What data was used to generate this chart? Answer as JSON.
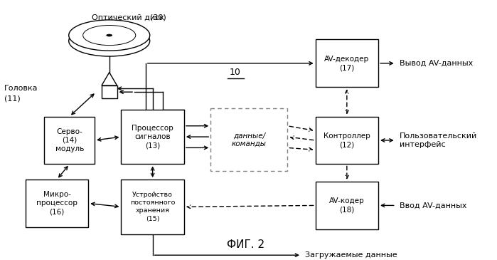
{
  "title": "ФИГ. 2",
  "system_label": "10",
  "background_color": "#ffffff",
  "disc_label_1": "Оптический диск",
  "disc_label_2": "(30)",
  "head_label_1": "Головка",
  "head_label_2": "(11)",
  "out_av_label": "Вывод AV-данных",
  "user_interface_label": "Пользовательский\nинтерфейс",
  "in_av_label": "Ввод AV-данных",
  "download_label": "Загружаемые данные",
  "data_cmd_label": "данные/\nкоманды",
  "servo_label": "Серво-\n(14)\nмодуль",
  "signal_label": "Процессор\nсигналов\n(13)",
  "storage_label": "Устройство\nпостоянного\nхранения\n(15)",
  "micro_label": "Микро-\nпроцессор\n(16)",
  "controller_label": "Контроллер\n(12)",
  "av_decoder_label": "AV-декодер\n(17)",
  "av_encoder_label": "AV-кодер\n(18)"
}
